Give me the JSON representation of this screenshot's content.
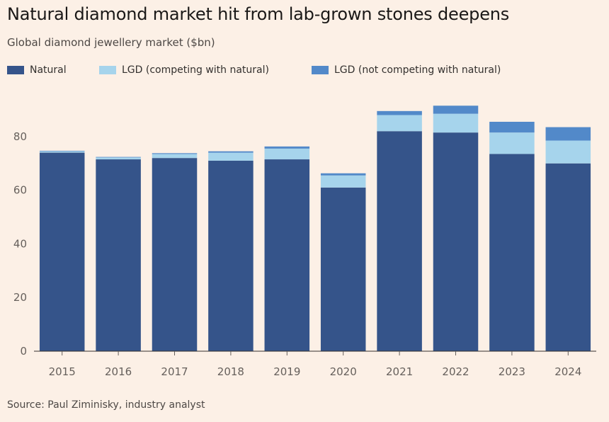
{
  "header": {
    "title": "Natural diamond market hit from lab-grown stones deepens",
    "subtitle": "Global diamond jewellery market ($bn)"
  },
  "legend": {
    "items": [
      {
        "label": "Natural",
        "color": "#35548a"
      },
      {
        "label": "LGD (competing with natural)",
        "color": "#a6d4ec"
      },
      {
        "label": "LGD (not competing with natural)",
        "color": "#5289c9"
      }
    ]
  },
  "footer": {
    "source": "Source: Paul Ziminisky, industry analyst"
  },
  "chart_data": {
    "type": "bar",
    "stacked": true,
    "title": "Natural diamond market hit from lab-grown stones deepens",
    "subtitle": "Global diamond jewellery market ($bn)",
    "xlabel": "",
    "ylabel": "",
    "ylim": [
      0,
      95
    ],
    "yticks": [
      0,
      20,
      40,
      60,
      80
    ],
    "grid": false,
    "legend_position": "top-left",
    "categories": [
      "2015",
      "2016",
      "2017",
      "2018",
      "2019",
      "2020",
      "2021",
      "2022",
      "2023",
      "2024"
    ],
    "series": [
      {
        "name": "Natural",
        "color": "#35548a",
        "values": [
          74,
          71.5,
          72,
          71,
          71.5,
          61,
          82,
          81.5,
          73.5,
          70
        ]
      },
      {
        "name": "LGD (competing with natural)",
        "color": "#a6d4ec",
        "values": [
          0.5,
          0.7,
          1.5,
          3,
          4,
          4.5,
          6,
          7,
          8,
          8.5
        ]
      },
      {
        "name": "LGD (not competing with natural)",
        "color": "#5289c9",
        "values": [
          0.2,
          0.2,
          0.3,
          0.5,
          0.8,
          0.8,
          1.5,
          3,
          4,
          5
        ]
      }
    ]
  }
}
